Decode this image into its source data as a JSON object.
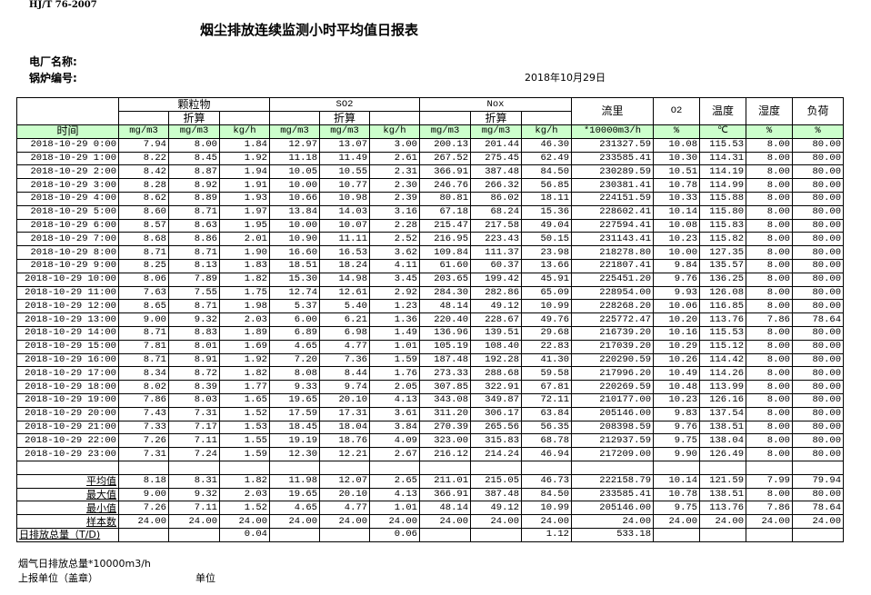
{
  "standard": "HJ/T  76-2007",
  "title": "烟尘排放连续监测小时平均值日报表",
  "plant_label": "电厂名称:",
  "boiler_label": "锅炉编号:",
  "date": "2018年10月29日",
  "headers": {
    "pm": "颗粒物",
    "so2": "SO2",
    "nox": "Nox",
    "flow": "流里",
    "o2": "O2",
    "temp": "温度",
    "humidity": "湿度",
    "load": "负荷",
    "converted": "折算",
    "time": "时间"
  },
  "units": [
    "mg/m3",
    "mg/m3",
    "kg/h",
    "mg/m3",
    "mg/m3",
    "kg/h",
    "mg/m3",
    "mg/m3",
    "kg/h",
    "*10000m3/h",
    "%",
    "℃",
    "%",
    "%"
  ],
  "rows": [
    [
      "2018-10-29 0:00",
      "7.94",
      "8.00",
      "1.84",
      "12.97",
      "13.07",
      "3.00",
      "200.13",
      "201.44",
      "46.30",
      "231327.59",
      "10.08",
      "115.53",
      "8.00",
      "80.00"
    ],
    [
      "2018-10-29 1:00",
      "8.22",
      "8.45",
      "1.92",
      "11.18",
      "11.49",
      "2.61",
      "267.52",
      "275.45",
      "62.49",
      "233585.41",
      "10.30",
      "114.31",
      "8.00",
      "80.00"
    ],
    [
      "2018-10-29 2:00",
      "8.42",
      "8.87",
      "1.94",
      "10.05",
      "10.55",
      "2.31",
      "366.91",
      "387.48",
      "84.50",
      "230289.59",
      "10.51",
      "114.19",
      "8.00",
      "80.00"
    ],
    [
      "2018-10-29 3:00",
      "8.28",
      "8.92",
      "1.91",
      "10.00",
      "10.77",
      "2.30",
      "246.76",
      "266.32",
      "56.85",
      "230381.41",
      "10.78",
      "114.99",
      "8.00",
      "80.00"
    ],
    [
      "2018-10-29 4:00",
      "8.62",
      "8.89",
      "1.93",
      "10.66",
      "10.98",
      "2.39",
      "80.81",
      "86.02",
      "18.11",
      "224151.59",
      "10.33",
      "115.88",
      "8.00",
      "80.00"
    ],
    [
      "2018-10-29 5:00",
      "8.60",
      "8.71",
      "1.97",
      "13.84",
      "14.03",
      "3.16",
      "67.18",
      "68.24",
      "15.36",
      "228602.41",
      "10.14",
      "115.80",
      "8.00",
      "80.00"
    ],
    [
      "2018-10-29 6:00",
      "8.57",
      "8.63",
      "1.95",
      "10.00",
      "10.07",
      "2.28",
      "215.47",
      "217.58",
      "49.04",
      "227594.41",
      "10.08",
      "115.83",
      "8.00",
      "80.00"
    ],
    [
      "2018-10-29 7:00",
      "8.68",
      "8.86",
      "2.01",
      "10.90",
      "11.11",
      "2.52",
      "216.95",
      "223.43",
      "50.15",
      "231143.41",
      "10.23",
      "115.82",
      "8.00",
      "80.00"
    ],
    [
      "2018-10-29 8:00",
      "8.71",
      "8.71",
      "1.90",
      "16.60",
      "16.53",
      "3.62",
      "109.84",
      "111.37",
      "23.98",
      "218278.80",
      "10.00",
      "127.35",
      "8.00",
      "80.00"
    ],
    [
      "2018-10-29 9:00",
      "8.25",
      "8.13",
      "1.83",
      "18.51",
      "18.24",
      "4.11",
      "61.60",
      "60.37",
      "13.66",
      "221807.41",
      "9.84",
      "135.57",
      "8.00",
      "80.00"
    ],
    [
      "2018-10-29 10:00",
      "8.06",
      "7.89",
      "1.82",
      "15.30",
      "14.98",
      "3.45",
      "203.65",
      "199.42",
      "45.91",
      "225451.20",
      "9.76",
      "136.25",
      "8.00",
      "80.00"
    ],
    [
      "2018-10-29 11:00",
      "7.63",
      "7.55",
      "1.75",
      "12.74",
      "12.61",
      "2.92",
      "284.30",
      "282.86",
      "65.09",
      "228954.00",
      "9.93",
      "126.08",
      "8.00",
      "80.00"
    ],
    [
      "2018-10-29 12:00",
      "8.65",
      "8.71",
      "1.98",
      "5.37",
      "5.40",
      "1.23",
      "48.14",
      "49.12",
      "10.99",
      "228268.20",
      "10.06",
      "116.85",
      "8.00",
      "80.00"
    ],
    [
      "2018-10-29 13:00",
      "9.00",
      "9.32",
      "2.03",
      "6.00",
      "6.21",
      "1.36",
      "220.40",
      "228.67",
      "49.76",
      "225772.47",
      "10.20",
      "113.76",
      "7.86",
      "78.64"
    ],
    [
      "2018-10-29 14:00",
      "8.71",
      "8.83",
      "1.89",
      "6.89",
      "6.98",
      "1.49",
      "136.96",
      "139.51",
      "29.68",
      "216739.20",
      "10.16",
      "115.53",
      "8.00",
      "80.00"
    ],
    [
      "2018-10-29 15:00",
      "7.81",
      "8.01",
      "1.69",
      "4.65",
      "4.77",
      "1.01",
      "105.19",
      "108.40",
      "22.83",
      "217039.20",
      "10.29",
      "115.12",
      "8.00",
      "80.00"
    ],
    [
      "2018-10-29 16:00",
      "8.71",
      "8.91",
      "1.92",
      "7.20",
      "7.36",
      "1.59",
      "187.48",
      "192.28",
      "41.30",
      "220290.59",
      "10.26",
      "114.42",
      "8.00",
      "80.00"
    ],
    [
      "2018-10-29 17:00",
      "8.34",
      "8.72",
      "1.82",
      "8.08",
      "8.44",
      "1.76",
      "273.33",
      "288.68",
      "59.58",
      "217996.20",
      "10.49",
      "114.26",
      "8.00",
      "80.00"
    ],
    [
      "2018-10-29 18:00",
      "8.02",
      "8.39",
      "1.77",
      "9.33",
      "9.74",
      "2.05",
      "307.85",
      "322.91",
      "67.81",
      "220269.59",
      "10.48",
      "113.99",
      "8.00",
      "80.00"
    ],
    [
      "2018-10-29 19:00",
      "7.86",
      "8.03",
      "1.65",
      "19.65",
      "20.10",
      "4.13",
      "343.08",
      "349.87",
      "72.11",
      "210177.00",
      "10.23",
      "126.16",
      "8.00",
      "80.00"
    ],
    [
      "2018-10-29 20:00",
      "7.43",
      "7.31",
      "1.52",
      "17.59",
      "17.31",
      "3.61",
      "311.20",
      "306.17",
      "63.84",
      "205146.00",
      "9.83",
      "137.54",
      "8.00",
      "80.00"
    ],
    [
      "2018-10-29 21:00",
      "7.33",
      "7.17",
      "1.53",
      "18.45",
      "18.04",
      "3.84",
      "270.39",
      "265.56",
      "56.35",
      "208398.59",
      "9.76",
      "138.51",
      "8.00",
      "80.00"
    ],
    [
      "2018-10-29 22:00",
      "7.26",
      "7.11",
      "1.55",
      "19.19",
      "18.76",
      "4.09",
      "323.00",
      "315.83",
      "68.78",
      "212937.59",
      "9.75",
      "138.04",
      "8.00",
      "80.00"
    ],
    [
      "2018-10-29 23:00",
      "7.31",
      "7.24",
      "1.59",
      "12.30",
      "12.21",
      "2.67",
      "216.12",
      "214.24",
      "46.94",
      "217209.00",
      "9.90",
      "126.49",
      "8.00",
      "80.00"
    ]
  ],
  "stats": [
    [
      "平均值",
      "8.18",
      "8.31",
      "1.82",
      "11.98",
      "12.07",
      "2.65",
      "211.01",
      "215.05",
      "46.73",
      "222158.79",
      "10.14",
      "121.59",
      "7.99",
      "79.94"
    ],
    [
      "最大值",
      "9.00",
      "9.32",
      "2.03",
      "19.65",
      "20.10",
      "4.13",
      "366.91",
      "387.48",
      "84.50",
      "233585.41",
      "10.78",
      "138.51",
      "8.00",
      "80.00"
    ],
    [
      "最小值",
      "7.26",
      "7.11",
      "1.52",
      "4.65",
      "4.77",
      "1.01",
      "48.14",
      "49.12",
      "10.99",
      "205146.00",
      "9.75",
      "113.76",
      "7.86",
      "78.64"
    ],
    [
      "样本数",
      "24.00",
      "24.00",
      "24.00",
      "24.00",
      "24.00",
      "24.00",
      "24.00",
      "24.00",
      "24.00",
      "24.00",
      "24.00",
      "24.00",
      "24.00",
      "24.00"
    ],
    [
      "日排放总量（T/D)",
      "",
      "",
      "0.04",
      "",
      "",
      "0.06",
      "",
      "",
      "1.12",
      "533.18",
      "",
      "",
      "",
      ""
    ]
  ],
  "footer": {
    "flue_gas_total": "烟气日排放总量*10000m3/h",
    "reporting_unit": "上报单位（盖章）",
    "unit": "单位"
  },
  "colors": {
    "unit_row_bg": "#ccffcc"
  }
}
